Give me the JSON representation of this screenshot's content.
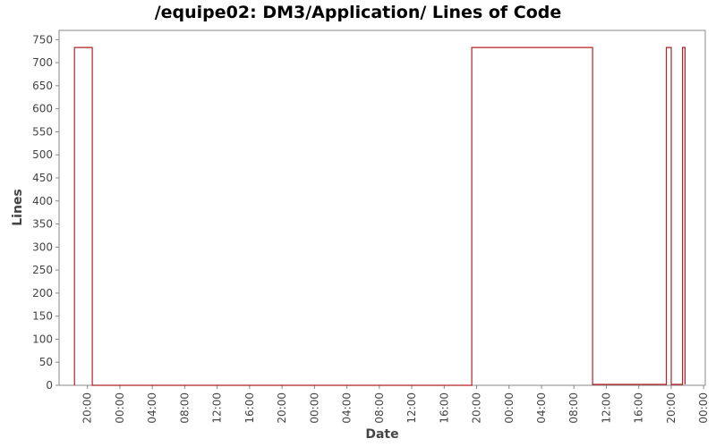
{
  "chart_data": {
    "type": "line",
    "step": true,
    "title": "/equipe02: DM3/Application/ Lines of Code",
    "xlabel": "Date",
    "ylabel": "Lines",
    "ylim": [
      0,
      770
    ],
    "yticks": [
      0,
      50,
      100,
      150,
      200,
      250,
      300,
      350,
      400,
      450,
      500,
      550,
      600,
      650,
      700,
      750
    ],
    "xlim_hours": [
      -3.5,
      76.2
    ],
    "xticks": [
      {
        "h": 0,
        "label": "20:00"
      },
      {
        "h": 4,
        "label": "00:00"
      },
      {
        "h": 8,
        "label": "04:00"
      },
      {
        "h": 12,
        "label": "08:00"
      },
      {
        "h": 16,
        "label": "12:00"
      },
      {
        "h": 20,
        "label": "16:00"
      },
      {
        "h": 24,
        "label": "20:00"
      },
      {
        "h": 28,
        "label": "00:00"
      },
      {
        "h": 32,
        "label": "04:00"
      },
      {
        "h": 36,
        "label": "08:00"
      },
      {
        "h": 40,
        "label": "12:00"
      },
      {
        "h": 44,
        "label": "16:00"
      },
      {
        "h": 48,
        "label": "20:00"
      },
      {
        "h": 52,
        "label": "00:00"
      },
      {
        "h": 56,
        "label": "04:00"
      },
      {
        "h": 60,
        "label": "08:00"
      },
      {
        "h": 64,
        "label": "12:00"
      },
      {
        "h": 68,
        "label": "16:00"
      },
      {
        "h": 72,
        "label": "20:00"
      },
      {
        "h": 76,
        "label": "00:00"
      }
    ],
    "series": [
      {
        "color": "#b22222",
        "points": [
          {
            "h": -1.6,
            "y": 0
          },
          {
            "h": -1.6,
            "y": 733
          },
          {
            "h": 0.6,
            "y": 733
          },
          {
            "h": 0.6,
            "y": 0
          },
          {
            "h": 47.4,
            "y": 0
          },
          {
            "h": 47.4,
            "y": 733
          },
          {
            "h": 62.3,
            "y": 733
          },
          {
            "h": 62.3,
            "y": 2
          },
          {
            "h": 71.4,
            "y": 2
          },
          {
            "h": 71.4,
            "y": 733
          },
          {
            "h": 72.0,
            "y": 733
          },
          {
            "h": 72.0,
            "y": 2
          },
          {
            "h": 73.4,
            "y": 2
          },
          {
            "h": 73.4,
            "y": 733
          },
          {
            "h": 73.7,
            "y": 733
          },
          {
            "h": 73.7,
            "y": 2
          }
        ]
      }
    ]
  }
}
